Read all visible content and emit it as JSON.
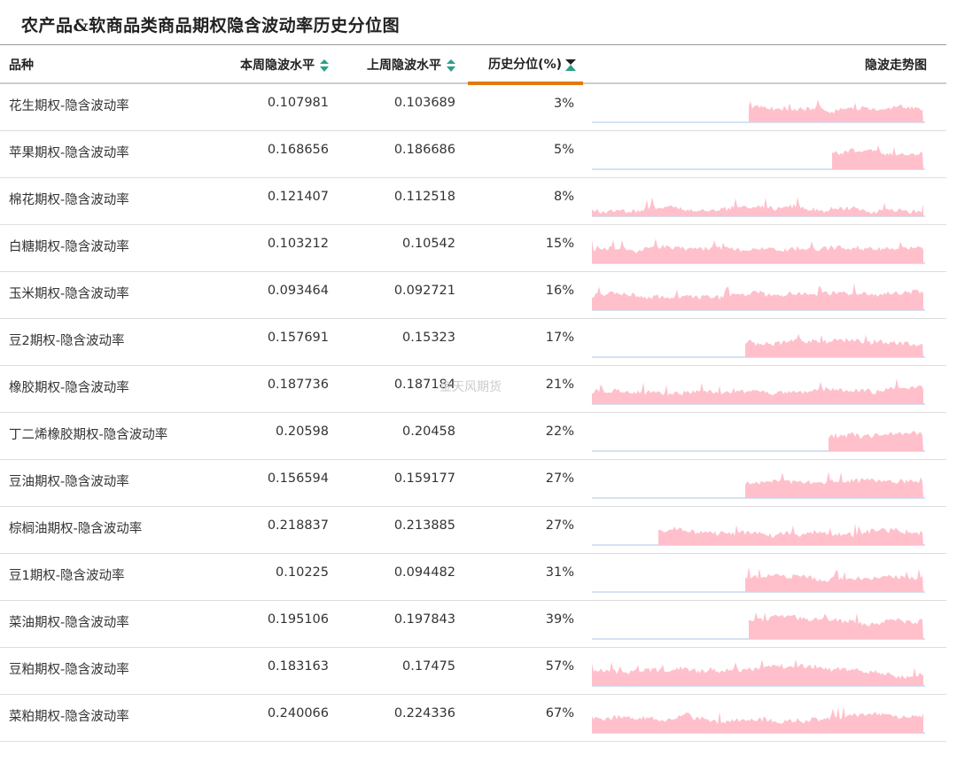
{
  "title": "农产品&软商品类商品期权隐含波动率历史分位图",
  "watermark": "金天风期货",
  "columns": {
    "name": "品种",
    "current": "本周隐波水平",
    "last": "上周隐波水平",
    "percentile": "历史分位(%)",
    "trend": "隐波走势图"
  },
  "colors": {
    "sparkline": "#ffc0cb",
    "baseline": "#aac4e6",
    "sort": "#2aa08a",
    "active": "#e07a10"
  },
  "rows": [
    {
      "name": "花生期权-隐含波动率",
      "current": "0.107981",
      "last": "0.103689",
      "percentile": "3%",
      "start": 0.47,
      "level": 0.55,
      "seed": 3
    },
    {
      "name": "苹果期权-隐含波动率",
      "current": "0.168656",
      "last": "0.186686",
      "percentile": "5%",
      "start": 0.72,
      "level": 0.6,
      "seed": 5
    },
    {
      "name": "棉花期权-隐含波动率",
      "current": "0.121407",
      "last": "0.112518",
      "percentile": "8%",
      "start": 0.0,
      "level": 0.2,
      "seed": 8
    },
    {
      "name": "白糖期权-隐含波动率",
      "current": "0.103212",
      "last": "0.10542",
      "percentile": "15%",
      "start": 0.0,
      "level": 0.6,
      "seed": 15
    },
    {
      "name": "玉米期权-隐含波动率",
      "current": "0.093464",
      "last": "0.092721",
      "percentile": "16%",
      "start": 0.0,
      "level": 0.55,
      "seed": 16
    },
    {
      "name": "豆2期权-隐含波动率",
      "current": "0.157691",
      "last": "0.15323",
      "percentile": "17%",
      "start": 0.46,
      "level": 0.55,
      "seed": 17
    },
    {
      "name": "橡胶期权-隐含波动率",
      "current": "0.187736",
      "last": "0.187184",
      "percentile": "21%",
      "start": 0.0,
      "level": 0.45,
      "seed": 21
    },
    {
      "name": "丁二烯橡胶期权-隐含波动率",
      "current": "0.20598",
      "last": "0.20458",
      "percentile": "22%",
      "start": 0.71,
      "level": 0.6,
      "seed": 22
    },
    {
      "name": "豆油期权-隐含波动率",
      "current": "0.156594",
      "last": "0.159177",
      "percentile": "27%",
      "start": 0.46,
      "level": 0.6,
      "seed": 27
    },
    {
      "name": "棕榈油期权-隐含波动率",
      "current": "0.218837",
      "last": "0.213885",
      "percentile": "27%",
      "start": 0.2,
      "level": 0.55,
      "seed": 28
    },
    {
      "name": "豆1期权-隐含波动率",
      "current": "0.10225",
      "last": "0.094482",
      "percentile": "31%",
      "start": 0.46,
      "level": 0.6,
      "seed": 31
    },
    {
      "name": "菜油期权-隐含波动率",
      "current": "0.195106",
      "last": "0.197843",
      "percentile": "39%",
      "start": 0.47,
      "level": 0.7,
      "seed": 39
    },
    {
      "name": "豆粕期权-隐含波动率",
      "current": "0.183163",
      "last": "0.17475",
      "percentile": "57%",
      "start": 0.0,
      "level": 0.5,
      "seed": 57
    },
    {
      "name": "菜粕期权-隐含波动率",
      "current": "0.240066",
      "last": "0.224336",
      "percentile": "67%",
      "start": 0.0,
      "level": 0.55,
      "seed": 67
    }
  ]
}
